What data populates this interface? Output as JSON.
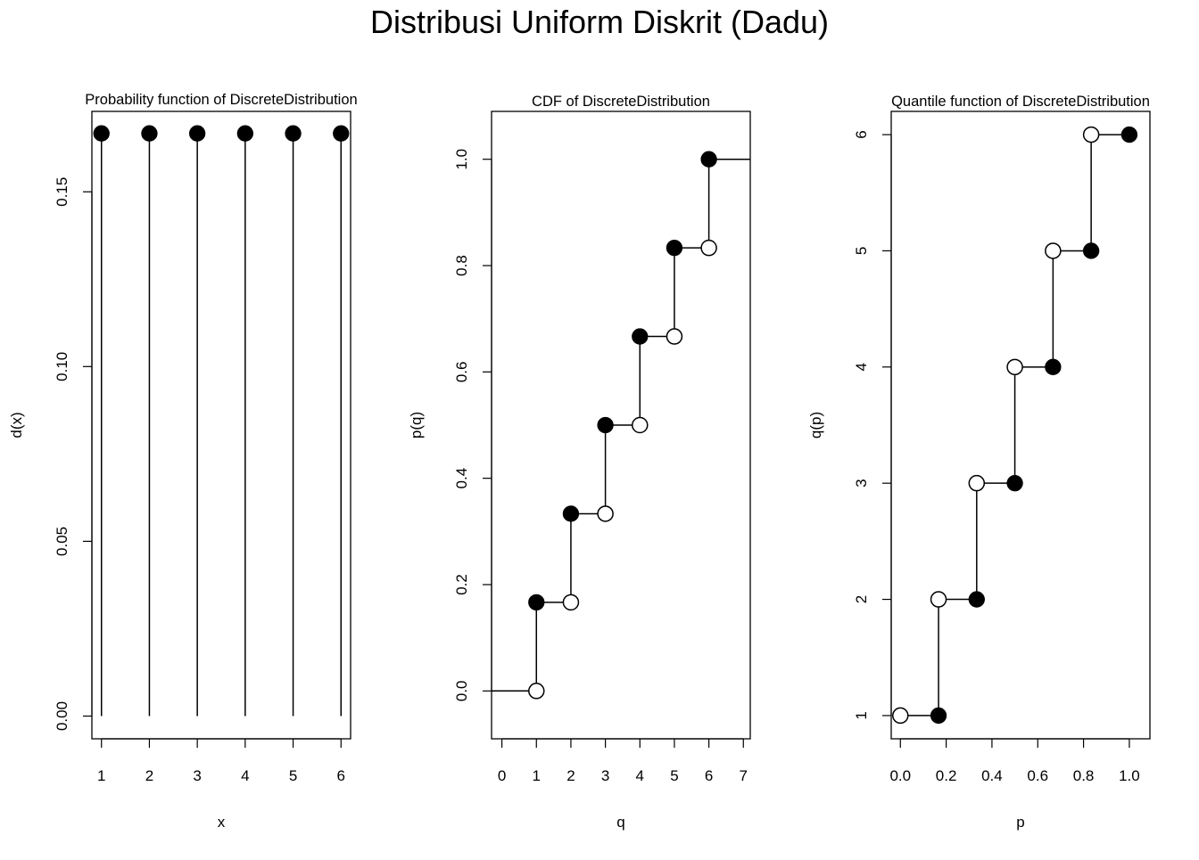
{
  "figure_title": "Distribusi Uniform Diskrit (Dadu)",
  "chart_data": [
    {
      "type": "scatter",
      "subtype": "probability-mass (vertical lines with filled points)",
      "title": "Probability function of DiscreteDistribution",
      "xlabel": "x",
      "ylabel": "d(x)",
      "xlim": [
        0.8,
        6.2
      ],
      "ylim": [
        -0.0065,
        0.173
      ],
      "xticks": [
        "1",
        "2",
        "3",
        "4",
        "5",
        "6"
      ],
      "xtick_values": [
        1,
        2,
        3,
        4,
        5,
        6
      ],
      "yticks": [
        "0.00",
        "0.05",
        "0.10",
        "0.15"
      ],
      "ytick_values": [
        0,
        0.05,
        0.1,
        0.15
      ],
      "x": [
        1,
        2,
        3,
        4,
        5,
        6
      ],
      "values": [
        0.1667,
        0.1667,
        0.1667,
        0.1667,
        0.1667,
        0.1667
      ],
      "grid": false
    },
    {
      "type": "line",
      "subtype": "step function (right-continuous CDF)",
      "title": "CDF of DiscreteDistribution",
      "xlabel": "q",
      "ylabel": "p(q)",
      "xlim": [
        -0.3,
        7.2
      ],
      "ylim": [
        -0.09,
        1.09
      ],
      "xticks": [
        "0",
        "1",
        "2",
        "3",
        "4",
        "5",
        "6",
        "7"
      ],
      "xtick_values": [
        0,
        1,
        2,
        3,
        4,
        5,
        6,
        7
      ],
      "yticks": [
        "0.0",
        "0.2",
        "0.4",
        "0.6",
        "0.8",
        "1.0"
      ],
      "ytick_values": [
        0,
        0.2,
        0.4,
        0.6,
        0.8,
        1.0
      ],
      "jumps_x": [
        1,
        2,
        3,
        4,
        5,
        6
      ],
      "open_points": [
        [
          1,
          0
        ],
        [
          2,
          0.1667
        ],
        [
          3,
          0.3333
        ],
        [
          4,
          0.5
        ],
        [
          5,
          0.6667
        ],
        [
          6,
          0.8333
        ]
      ],
      "filled_points": [
        [
          1,
          0.1667
        ],
        [
          2,
          0.3333
        ],
        [
          3,
          0.5
        ],
        [
          4,
          0.6667
        ],
        [
          5,
          0.8333
        ],
        [
          6,
          1.0
        ]
      ],
      "grid": false
    },
    {
      "type": "line",
      "subtype": "step function (quantile function)",
      "title": "Quantile function of DiscreteDistribution",
      "xlabel": "p",
      "ylabel": "q(p)",
      "xlim": [
        -0.04,
        1.09
      ],
      "ylim": [
        0.8,
        6.2
      ],
      "xticks": [
        "0.0",
        "0.2",
        "0.4",
        "0.6",
        "0.8",
        "1.0"
      ],
      "xtick_values": [
        0,
        0.2,
        0.4,
        0.6,
        0.8,
        1.0
      ],
      "yticks": [
        "1",
        "2",
        "3",
        "4",
        "5",
        "6"
      ],
      "ytick_values": [
        1,
        2,
        3,
        4,
        5,
        6
      ],
      "open_points": [
        [
          0,
          1
        ],
        [
          0.1667,
          2
        ],
        [
          0.3333,
          3
        ],
        [
          0.5,
          4
        ],
        [
          0.6667,
          5
        ],
        [
          0.8333,
          6
        ]
      ],
      "filled_points": [
        [
          0.1667,
          1
        ],
        [
          0.3333,
          2
        ],
        [
          0.5,
          3
        ],
        [
          0.6667,
          4
        ],
        [
          0.8333,
          5
        ],
        [
          1.0,
          6
        ]
      ],
      "grid": false
    }
  ]
}
